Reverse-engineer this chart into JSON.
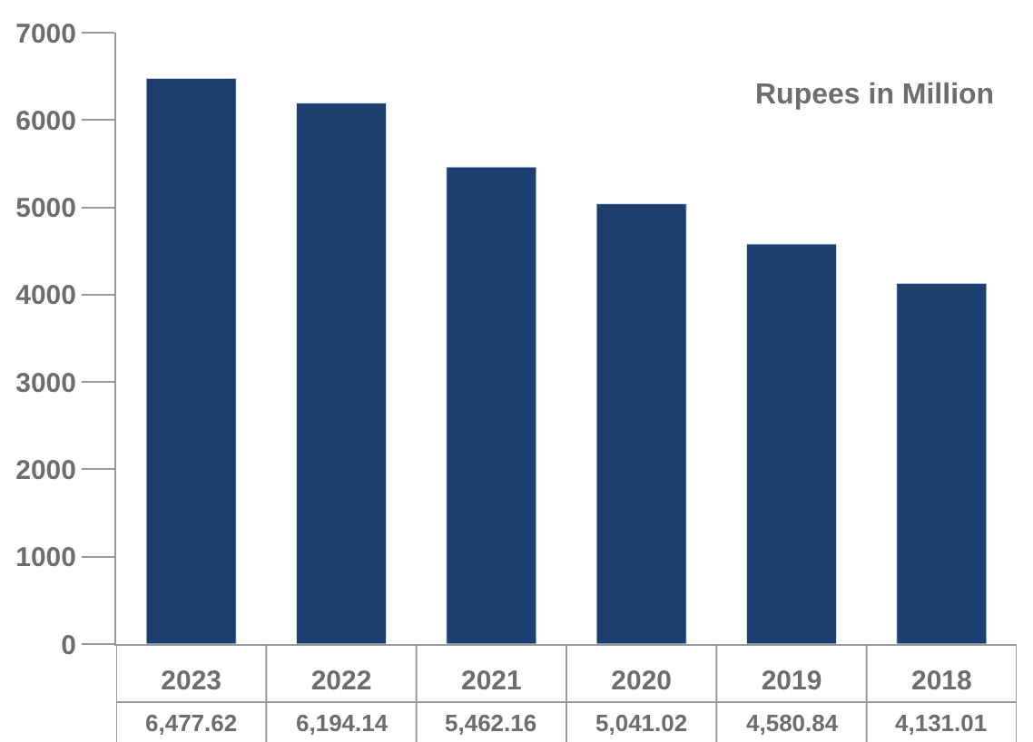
{
  "chart_data": {
    "type": "bar",
    "categories": [
      "2023",
      "2022",
      "2021",
      "2020",
      "2019",
      "2018"
    ],
    "values": [
      6477.62,
      6194.14,
      5462.16,
      5041.02,
      4580.84,
      4131.01
    ],
    "value_labels": [
      "6,477.62",
      "6,194.14",
      "5,462.16",
      "5,041.02",
      "4,580.84",
      "4,131.01"
    ],
    "color": "#1b3f6e",
    "ylim": [
      0,
      7000
    ],
    "yticks": [
      0,
      1000,
      2000,
      3000,
      4000,
      5000,
      6000,
      7000
    ],
    "annotations": [
      "Rupees in Million"
    ]
  }
}
